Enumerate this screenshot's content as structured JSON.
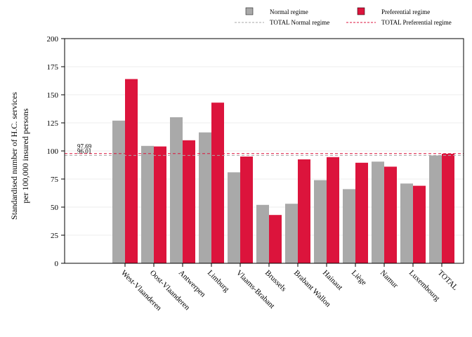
{
  "chart_data": {
    "type": "bar",
    "ylabel_lines": [
      "Standardised number of H.C. services",
      "per 100,000 insured persons"
    ],
    "xlabel": "",
    "ylim": [
      0,
      200
    ],
    "yticks": [
      0,
      25,
      50,
      75,
      100,
      125,
      150,
      175,
      200
    ],
    "grid": true,
    "legend_position": "top-right",
    "categories": [
      "West-Vlaanderen",
      "Oost-Vlaanderen",
      "Antwerpen",
      "Limburg",
      "Vlaams-Brabant",
      "Brussels",
      "Brabant Wallon",
      "Hainaut",
      "Liège",
      "Namur",
      "Luxembourg",
      "TOTAL"
    ],
    "series": [
      {
        "name": "Normal regime",
        "color": "#a9a9a9",
        "values": [
          127,
          104.5,
          130,
          116.5,
          81,
          52,
          53,
          74,
          66,
          90.5,
          71,
          96
        ]
      },
      {
        "name": "Preferential regime",
        "color": "#dc143c",
        "values": [
          164,
          104,
          109.5,
          143,
          95,
          43,
          92.5,
          94.5,
          89.5,
          86,
          69,
          97.5
        ]
      }
    ],
    "reference_lines": [
      {
        "name": "TOTAL Normal regime",
        "value": 96.01,
        "label": "96.01",
        "color": "#a9a9a9"
      },
      {
        "name": "TOTAL Preferential regime",
        "value": 97.69,
        "label": "97.69",
        "color": "#dc143c"
      }
    ]
  }
}
